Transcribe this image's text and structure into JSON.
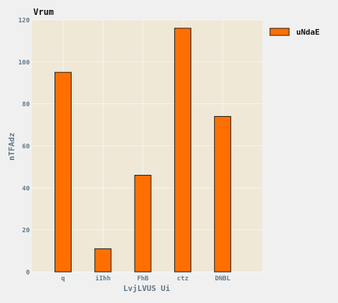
{
  "chart_data": {
    "type": "bar",
    "title": "Vrum",
    "xlabel": "LvjLVUS  Ui",
    "ylabel": "nTFAdz",
    "categories": [
      "q",
      "iIhh",
      "FhB",
      "ctz",
      "DNBL"
    ],
    "series": [
      {
        "name": "uNdaE",
        "values": [
          95,
          11,
          46,
          116,
          74
        ]
      }
    ],
    "ylim": [
      0,
      120
    ],
    "yticks": [
      0,
      20,
      40,
      60,
      80,
      100,
      120
    ],
    "grid": true,
    "legend_position": "right, outside top"
  },
  "colors": {
    "figure_background": "#f0f0f0",
    "plot_background": "#efe8d7",
    "bar_fill": "#ff6f00",
    "bar_edge": "#1a1a1a",
    "grid": "#ffffff",
    "tick_label": "#5f7a8c",
    "title": "#111111"
  }
}
